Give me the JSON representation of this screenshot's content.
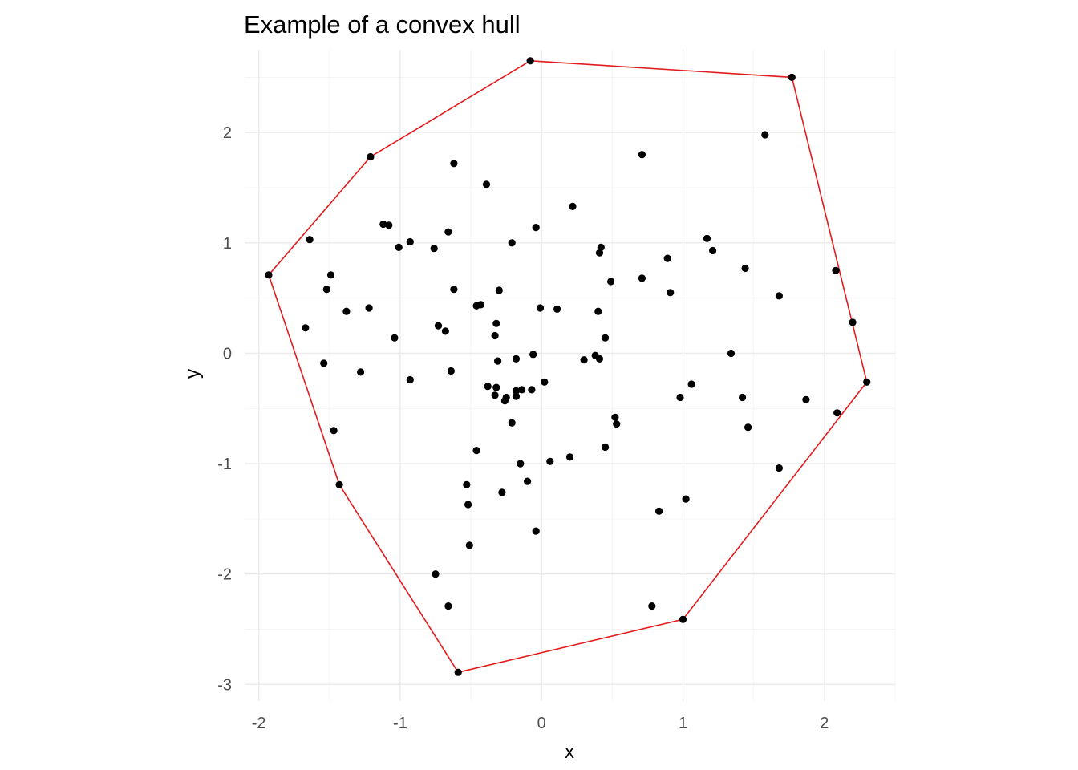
{
  "chart_data": {
    "type": "scatter",
    "title": "Example of a convex hull",
    "xlabel": "x",
    "ylabel": "y",
    "xlim": [
      -2.1,
      2.5
    ],
    "ylim": [
      -3.15,
      2.75
    ],
    "x_ticks": [
      -2,
      -1,
      0,
      1,
      2
    ],
    "y_ticks": [
      -3,
      -2,
      -1,
      0,
      1,
      2
    ],
    "x_tick_labels": [
      "-2",
      "-1",
      "0",
      "1",
      "2"
    ],
    "y_tick_labels": [
      "-3",
      "-2",
      "-1",
      "0",
      "1",
      "2"
    ],
    "grid": true,
    "point_color": "#000000",
    "hull_color": "#e41a1c",
    "points": [
      {
        "x": -0.08,
        "y": 2.65
      },
      {
        "x": 1.77,
        "y": 2.5
      },
      {
        "x": -1.21,
        "y": 1.78
      },
      {
        "x": 1.58,
        "y": 1.98
      },
      {
        "x": -0.62,
        "y": 1.72
      },
      {
        "x": 0.71,
        "y": 1.8
      },
      {
        "x": -0.39,
        "y": 1.53
      },
      {
        "x": 0.22,
        "y": 1.33
      },
      {
        "x": -1.12,
        "y": 1.17
      },
      {
        "x": -1.08,
        "y": 1.16
      },
      {
        "x": -0.04,
        "y": 1.14
      },
      {
        "x": -0.66,
        "y": 1.1
      },
      {
        "x": -1.64,
        "y": 1.03
      },
      {
        "x": -0.93,
        "y": 1.01
      },
      {
        "x": -0.21,
        "y": 1.0
      },
      {
        "x": 1.17,
        "y": 1.04
      },
      {
        "x": -1.01,
        "y": 0.96
      },
      {
        "x": -0.76,
        "y": 0.95
      },
      {
        "x": 0.42,
        "y": 0.96
      },
      {
        "x": 0.41,
        "y": 0.91
      },
      {
        "x": 1.21,
        "y": 0.93
      },
      {
        "x": 0.89,
        "y": 0.86
      },
      {
        "x": 1.44,
        "y": 0.77
      },
      {
        "x": 2.08,
        "y": 0.75
      },
      {
        "x": -1.93,
        "y": 0.71
      },
      {
        "x": -1.49,
        "y": 0.71
      },
      {
        "x": 0.71,
        "y": 0.68
      },
      {
        "x": 0.49,
        "y": 0.65
      },
      {
        "x": -1.52,
        "y": 0.58
      },
      {
        "x": -0.62,
        "y": 0.58
      },
      {
        "x": -0.3,
        "y": 0.57
      },
      {
        "x": 0.91,
        "y": 0.55
      },
      {
        "x": 1.68,
        "y": 0.52
      },
      {
        "x": -0.43,
        "y": 0.44
      },
      {
        "x": -0.46,
        "y": 0.43
      },
      {
        "x": -0.01,
        "y": 0.41
      },
      {
        "x": 0.11,
        "y": 0.4
      },
      {
        "x": -1.22,
        "y": 0.41
      },
      {
        "x": -1.38,
        "y": 0.38
      },
      {
        "x": 0.4,
        "y": 0.38
      },
      {
        "x": 2.2,
        "y": 0.28
      },
      {
        "x": -0.32,
        "y": 0.27
      },
      {
        "x": -0.73,
        "y": 0.25
      },
      {
        "x": -1.67,
        "y": 0.23
      },
      {
        "x": -0.68,
        "y": 0.2
      },
      {
        "x": -0.33,
        "y": 0.16
      },
      {
        "x": -1.04,
        "y": 0.14
      },
      {
        "x": 0.45,
        "y": 0.14
      },
      {
        "x": 1.34,
        "y": 0.0
      },
      {
        "x": -0.06,
        "y": -0.01
      },
      {
        "x": 0.38,
        "y": -0.02
      },
      {
        "x": 0.41,
        "y": -0.05
      },
      {
        "x": -0.18,
        "y": -0.05
      },
      {
        "x": 0.3,
        "y": -0.06
      },
      {
        "x": -0.31,
        "y": -0.07
      },
      {
        "x": -1.54,
        "y": -0.09
      },
      {
        "x": -0.64,
        "y": -0.16
      },
      {
        "x": -1.28,
        "y": -0.17
      },
      {
        "x": -0.93,
        "y": -0.24
      },
      {
        "x": 2.3,
        "y": -0.26
      },
      {
        "x": 0.02,
        "y": -0.26
      },
      {
        "x": 1.06,
        "y": -0.28
      },
      {
        "x": -0.38,
        "y": -0.3
      },
      {
        "x": -0.32,
        "y": -0.31
      },
      {
        "x": -0.07,
        "y": -0.33
      },
      {
        "x": -0.14,
        "y": -0.33
      },
      {
        "x": -0.18,
        "y": -0.34
      },
      {
        "x": -0.33,
        "y": -0.38
      },
      {
        "x": -0.18,
        "y": -0.39
      },
      {
        "x": -0.25,
        "y": -0.4
      },
      {
        "x": 0.98,
        "y": -0.4
      },
      {
        "x": 1.42,
        "y": -0.4
      },
      {
        "x": -0.26,
        "y": -0.43
      },
      {
        "x": 1.87,
        "y": -0.42
      },
      {
        "x": 2.09,
        "y": -0.54
      },
      {
        "x": 0.52,
        "y": -0.58
      },
      {
        "x": -0.21,
        "y": -0.63
      },
      {
        "x": 0.53,
        "y": -0.64
      },
      {
        "x": 1.46,
        "y": -0.67
      },
      {
        "x": -1.47,
        "y": -0.7
      },
      {
        "x": 0.45,
        "y": -0.85
      },
      {
        "x": -0.46,
        "y": -0.88
      },
      {
        "x": 0.2,
        "y": -0.94
      },
      {
        "x": 0.06,
        "y": -0.98
      },
      {
        "x": -0.15,
        "y": -1.0
      },
      {
        "x": 1.68,
        "y": -1.04
      },
      {
        "x": -0.1,
        "y": -1.16
      },
      {
        "x": -0.53,
        "y": -1.19
      },
      {
        "x": -1.43,
        "y": -1.19
      },
      {
        "x": -0.28,
        "y": -1.26
      },
      {
        "x": 1.02,
        "y": -1.32
      },
      {
        "x": -0.52,
        "y": -1.37
      },
      {
        "x": 0.83,
        "y": -1.43
      },
      {
        "x": -0.04,
        "y": -1.61
      },
      {
        "x": -0.51,
        "y": -1.74
      },
      {
        "x": -0.75,
        "y": -2.0
      },
      {
        "x": -0.66,
        "y": -2.29
      },
      {
        "x": 0.78,
        "y": -2.29
      },
      {
        "x": 1.0,
        "y": -2.41
      },
      {
        "x": -0.59,
        "y": -2.89
      }
    ],
    "hull": [
      {
        "x": -0.08,
        "y": 2.65
      },
      {
        "x": 1.77,
        "y": 2.5
      },
      {
        "x": 2.3,
        "y": -0.26
      },
      {
        "x": 1.0,
        "y": -2.41
      },
      {
        "x": -0.59,
        "y": -2.89
      },
      {
        "x": -1.43,
        "y": -1.19
      },
      {
        "x": -1.93,
        "y": 0.71
      },
      {
        "x": -1.21,
        "y": 1.78
      },
      {
        "x": -0.08,
        "y": 2.65
      }
    ]
  }
}
